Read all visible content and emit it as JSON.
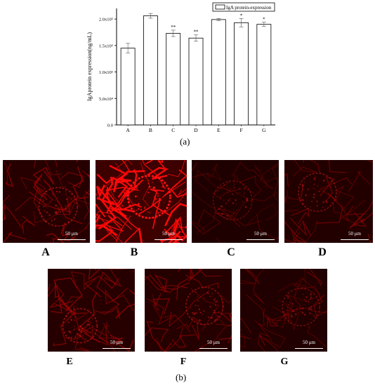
{
  "figure": {
    "caption_a": "(a)",
    "caption_b": "(b)"
  },
  "chart_data": {
    "type": "bar",
    "categories": [
      "A",
      "B",
      "C",
      "D",
      "E",
      "F",
      "G"
    ],
    "values": [
      145000,
      206000,
      173000,
      164000,
      199000,
      193000,
      190000
    ],
    "errors": [
      9000,
      4500,
      6000,
      6000,
      2000,
      8000,
      4000
    ],
    "significance": [
      "",
      "",
      "**",
      "**",
      "",
      "*",
      "*"
    ],
    "ylabel": "IgAprotein expression(ng/mL)",
    "ylim": [
      0,
      220000
    ],
    "yticks": [
      {
        "value": 0,
        "label": "0.0"
      },
      {
        "value": 50000,
        "label": "5.0x10⁴"
      },
      {
        "value": 100000,
        "label": "1.0x10⁵"
      },
      {
        "value": 150000,
        "label": "1.5x10⁵"
      },
      {
        "value": 200000,
        "label": "2.0x10⁵"
      }
    ],
    "legend": {
      "label": "IgA protein-expression",
      "position": "top-right"
    },
    "grid": false
  },
  "panels": [
    {
      "letter": "A",
      "scale": "50 μm",
      "intensity": 0.45
    },
    {
      "letter": "B",
      "scale": "50 μm",
      "intensity": 1.0
    },
    {
      "letter": "C",
      "scale": "50 μm",
      "intensity": 0.25
    },
    {
      "letter": "D",
      "scale": "50 μm",
      "intensity": 0.35
    },
    {
      "letter": "E",
      "scale": "50 μm",
      "intensity": 0.45
    },
    {
      "letter": "F",
      "scale": "50 μm",
      "intensity": 0.4
    },
    {
      "letter": "G",
      "scale": "50 μm",
      "intensity": 0.3
    }
  ]
}
